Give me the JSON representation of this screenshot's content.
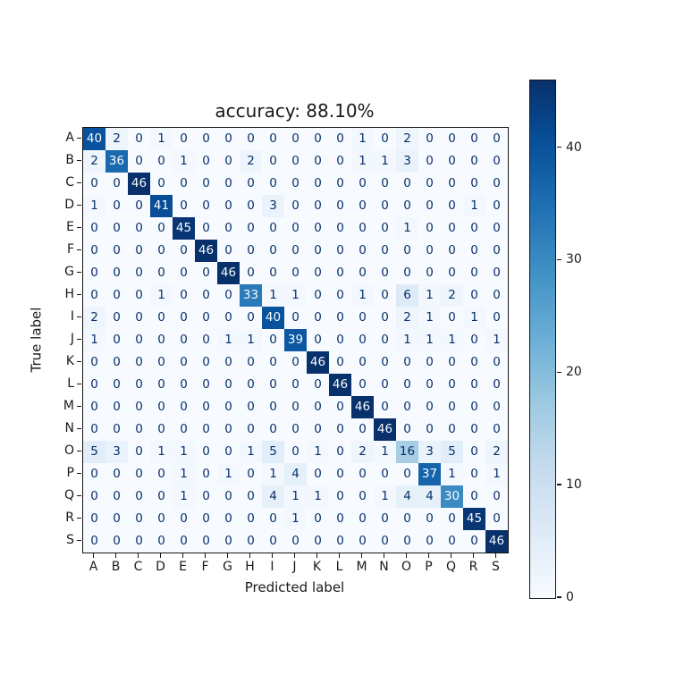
{
  "chart_data": {
    "type": "heatmap",
    "subtype": "confusion-matrix",
    "title": "accuracy: 88.10%",
    "xlabel": "Predicted label",
    "ylabel": "True label",
    "x_tick_labels": [
      "A",
      "B",
      "C",
      "D",
      "E",
      "F",
      "G",
      "H",
      "I",
      "J",
      "K",
      "L",
      "M",
      "N",
      "O",
      "P",
      "Q",
      "R",
      "S"
    ],
    "y_tick_labels": [
      "A",
      "B",
      "C",
      "D",
      "E",
      "F",
      "G",
      "H",
      "I",
      "J",
      "K",
      "L",
      "M",
      "N",
      "O",
      "P",
      "Q",
      "R",
      "S"
    ],
    "matrix": [
      [
        40,
        2,
        0,
        1,
        0,
        0,
        0,
        0,
        0,
        0,
        0,
        0,
        1,
        0,
        2,
        0,
        0,
        0,
        0
      ],
      [
        2,
        36,
        0,
        0,
        1,
        0,
        0,
        2,
        0,
        0,
        0,
        0,
        1,
        1,
        3,
        0,
        0,
        0,
        0
      ],
      [
        0,
        0,
        46,
        0,
        0,
        0,
        0,
        0,
        0,
        0,
        0,
        0,
        0,
        0,
        0,
        0,
        0,
        0,
        0
      ],
      [
        1,
        0,
        0,
        41,
        0,
        0,
        0,
        0,
        3,
        0,
        0,
        0,
        0,
        0,
        0,
        0,
        0,
        1,
        0
      ],
      [
        0,
        0,
        0,
        0,
        45,
        0,
        0,
        0,
        0,
        0,
        0,
        0,
        0,
        0,
        1,
        0,
        0,
        0,
        0
      ],
      [
        0,
        0,
        0,
        0,
        0,
        46,
        0,
        0,
        0,
        0,
        0,
        0,
        0,
        0,
        0,
        0,
        0,
        0,
        0
      ],
      [
        0,
        0,
        0,
        0,
        0,
        0,
        46,
        0,
        0,
        0,
        0,
        0,
        0,
        0,
        0,
        0,
        0,
        0,
        0
      ],
      [
        0,
        0,
        0,
        1,
        0,
        0,
        0,
        33,
        1,
        1,
        0,
        0,
        1,
        0,
        6,
        1,
        2,
        0,
        0
      ],
      [
        2,
        0,
        0,
        0,
        0,
        0,
        0,
        0,
        40,
        0,
        0,
        0,
        0,
        0,
        2,
        1,
        0,
        1,
        0
      ],
      [
        1,
        0,
        0,
        0,
        0,
        0,
        1,
        1,
        0,
        39,
        0,
        0,
        0,
        0,
        1,
        1,
        1,
        0,
        1
      ],
      [
        0,
        0,
        0,
        0,
        0,
        0,
        0,
        0,
        0,
        0,
        46,
        0,
        0,
        0,
        0,
        0,
        0,
        0,
        0
      ],
      [
        0,
        0,
        0,
        0,
        0,
        0,
        0,
        0,
        0,
        0,
        0,
        46,
        0,
        0,
        0,
        0,
        0,
        0,
        0
      ],
      [
        0,
        0,
        0,
        0,
        0,
        0,
        0,
        0,
        0,
        0,
        0,
        0,
        46,
        0,
        0,
        0,
        0,
        0,
        0
      ],
      [
        0,
        0,
        0,
        0,
        0,
        0,
        0,
        0,
        0,
        0,
        0,
        0,
        0,
        46,
        0,
        0,
        0,
        0,
        0
      ],
      [
        5,
        3,
        0,
        1,
        1,
        0,
        0,
        1,
        5,
        0,
        1,
        0,
        2,
        1,
        16,
        3,
        5,
        0,
        2
      ],
      [
        0,
        0,
        0,
        0,
        1,
        0,
        1,
        0,
        1,
        4,
        0,
        0,
        0,
        0,
        0,
        37,
        1,
        0,
        1
      ],
      [
        0,
        0,
        0,
        0,
        1,
        0,
        0,
        0,
        4,
        1,
        1,
        0,
        0,
        1,
        4,
        4,
        30,
        0,
        0
      ],
      [
        0,
        0,
        0,
        0,
        0,
        0,
        0,
        0,
        0,
        1,
        0,
        0,
        0,
        0,
        0,
        0,
        0,
        45,
        0
      ],
      [
        0,
        0,
        0,
        0,
        0,
        0,
        0,
        0,
        0,
        0,
        0,
        0,
        0,
        0,
        0,
        0,
        0,
        0,
        46
      ]
    ],
    "vmin": 0,
    "vmax": 46,
    "value_text_threshold": 23,
    "grid": false,
    "legend_position": "none",
    "colormap": {
      "name": "Blues",
      "anchors": [
        "#f7fbff",
        "#deebf7",
        "#c6dbef",
        "#9ecae1",
        "#6baed6",
        "#4292c6",
        "#2171b5",
        "#08519c",
        "#08306b"
      ]
    },
    "text_color_light": "#f7fbff",
    "text_color_dark": "#08306b",
    "axis_color": "#141414",
    "colorbar": {
      "orientation": "vertical",
      "position": "right",
      "ticks": [
        0,
        10,
        20,
        30,
        40
      ]
    }
  }
}
